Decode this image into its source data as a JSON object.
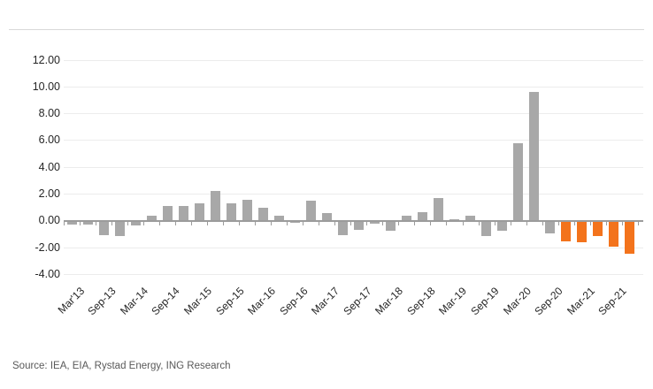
{
  "footer": {
    "source": "Source: IEA, EIA, Rystad Energy, ING Research"
  },
  "chart_data": {
    "type": "bar",
    "title": "",
    "xlabel": "",
    "ylabel": "",
    "y_tick_labels": [
      "12.00",
      "10.00",
      "8.00",
      "6.00",
      "4.00",
      "2.00",
      "0.00",
      "-2.00",
      "-4.00"
    ],
    "y_tick_values": [
      12,
      10,
      8,
      6,
      4,
      2,
      0,
      -2,
      -4
    ],
    "ylim": [
      -4.6,
      13.2
    ],
    "grid": "horizontal",
    "x_tick_labels": [
      "Mar'13",
      "Sep-13",
      "Mar-14",
      "Sep-14",
      "Mar-15",
      "Sep-15",
      "Mar-16",
      "Sep-16",
      "Mar-17",
      "Sep-17",
      "Mar-18",
      "Sep-18",
      "Mar-19",
      "Sep-19",
      "Mar-20",
      "Sep-20",
      "Mar-21",
      "Sep-21"
    ],
    "x_label_every_n_bars": 2,
    "values": [
      -0.2,
      -0.2,
      -1.0,
      -1.1,
      -0.3,
      0.4,
      1.1,
      1.1,
      1.3,
      2.2,
      1.3,
      1.6,
      1.0,
      0.35,
      -0.1,
      1.5,
      0.55,
      -1.0,
      -0.6,
      -0.15,
      -0.7,
      0.35,
      0.65,
      1.7,
      0.15,
      0.4,
      -1.05,
      -0.65,
      5.8,
      9.6,
      -0.9,
      -1.45,
      -1.5,
      -1.1,
      -1.85,
      -2.4
    ],
    "forecast_start_index": 31,
    "colors": {
      "actual_bar": "#A8A8A8",
      "forecast_bar": "#F3731C",
      "gridline": "#ECECEC",
      "zero_axis": "#9B9B9B",
      "axis_text": "#262626",
      "source_text": "#595959",
      "top_rule": "#D9D9D9"
    },
    "legend": "none"
  }
}
